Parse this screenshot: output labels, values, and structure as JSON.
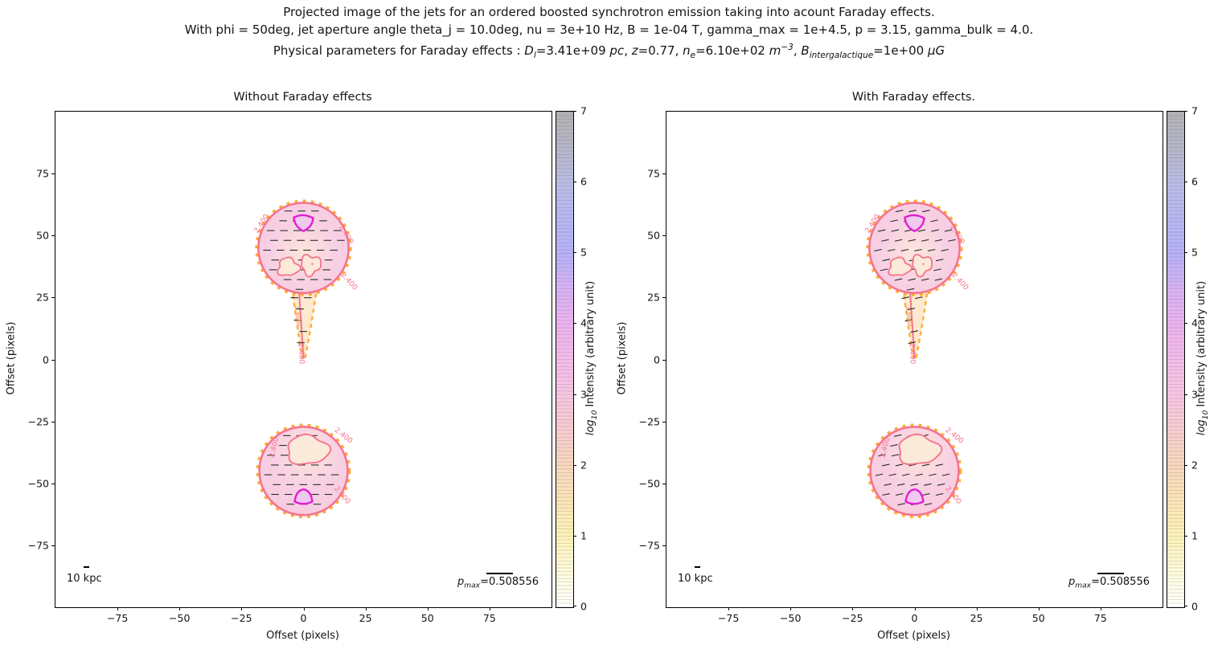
{
  "suptitle": {
    "line1": "Projected image of the jets for an ordered boosted synchrotron emission taking into acount Faraday effects.",
    "line2": "With phi = 50deg, jet aperture angle theta_j = 10.0deg, nu = 3e+10 Hz, B = 1e-04 T, gamma_max = 1e+4.5, p = 3.15, gamma_bulk = 4.0.",
    "line3_rich": [
      {
        "t": "t",
        "v": "Physical parameters for Faraday effects : "
      },
      {
        "t": "i",
        "v": "D"
      },
      {
        "t": "isub",
        "v": "l"
      },
      {
        "t": "t",
        "v": "=3.41e+09 "
      },
      {
        "t": "i",
        "v": "pc"
      },
      {
        "t": "t",
        "v": ", "
      },
      {
        "t": "i",
        "v": "z"
      },
      {
        "t": "t",
        "v": "=0.77, "
      },
      {
        "t": "i",
        "v": "n"
      },
      {
        "t": "isub",
        "v": "e"
      },
      {
        "t": "t",
        "v": "=6.10e+02 "
      },
      {
        "t": "i",
        "v": "m"
      },
      {
        "t": "isup",
        "v": "−3"
      },
      {
        "t": "t",
        "v": ", "
      },
      {
        "t": "i",
        "v": "B"
      },
      {
        "t": "isub",
        "v": "intergalactique"
      },
      {
        "t": "t",
        "v": "=1e+00 "
      },
      {
        "t": "i",
        "v": "μG"
      }
    ]
  },
  "colorbar": {
    "label_rich": [
      {
        "t": "i",
        "v": "log"
      },
      {
        "t": "isub",
        "v": "10"
      },
      {
        "t": "t",
        "v": " Intensity (arbitrary unit)"
      }
    ],
    "ticks": [
      0,
      1,
      2,
      3,
      4,
      5,
      6,
      7
    ],
    "min": 0,
    "max": 7
  },
  "colors": {
    "contour_low_orange": "#ffad2f",
    "contour_mid_pink": "#f4748e",
    "contour_tail_label": "#f58d7a",
    "contour_high_magenta": "#e01fd0",
    "lobe_fill_pink": "#f8d0e3",
    "lobe_fill_cream": "#fce6dc",
    "inner_blob_fill": "#fbe9da",
    "magenta_fill": "#f1c8ef",
    "tail_fill": "#fce9cf",
    "polarization_dash": "#2b2b2b",
    "colorbar_stops_bottom_to_top": [
      "#fffffa",
      "#fdf2b8",
      "#f8d7bd",
      "#f6c5e1",
      "#ecb2ee",
      "#b6b1f6",
      "#babce4",
      "#b2b2b2"
    ]
  },
  "chart_data": [
    {
      "type": "contour",
      "title": "Without Faraday effects",
      "xlabel": "Offset (pixels)",
      "ylabel": "Offset (pixels)",
      "xlim": [
        -100,
        100
      ],
      "ylim": [
        -100,
        100
      ],
      "xticks": [
        -75,
        -50,
        -25,
        0,
        25,
        50,
        75
      ],
      "yticks": [
        75,
        50,
        25,
        0,
        -25,
        -50,
        -75
      ],
      "grid": false,
      "polarization_angle_deg": 0,
      "lobes": {
        "top": {
          "center": [
            0,
            45
          ],
          "radius": 18.2,
          "tail_tip": [
            0,
            0.5
          ]
        },
        "bottom": {
          "center": [
            0,
            -45
          ],
          "radius": 17.8
        }
      },
      "contour_levels_labeled": [
        "1.600",
        "2.400"
      ],
      "scalebar_label": "10 kpc",
      "pmax_rich": [
        {
          "t": "i",
          "v": "p"
        },
        {
          "t": "isub",
          "v": "max"
        },
        {
          "t": "t",
          "v": "=0.508556"
        }
      ]
    },
    {
      "type": "contour",
      "title": "With Faraday effects.",
      "xlabel": "Offset (pixels)",
      "ylabel": "Offset (pixels)",
      "xlim": [
        -100,
        100
      ],
      "ylim": [
        -100,
        100
      ],
      "xticks": [
        -75,
        -50,
        -25,
        0,
        25,
        50,
        75
      ],
      "yticks": [
        75,
        50,
        25,
        0,
        -25,
        -50,
        -75
      ],
      "grid": false,
      "polarization_angle_deg": -12,
      "lobes": {
        "top": {
          "center": [
            0,
            45
          ],
          "radius": 18.2,
          "tail_tip": [
            0,
            0.5
          ]
        },
        "bottom": {
          "center": [
            0,
            -45
          ],
          "radius": 17.8
        }
      },
      "contour_levels_labeled": [
        "1.600",
        "2.400"
      ],
      "scalebar_label": "10 kpc",
      "pmax_rich": [
        {
          "t": "i",
          "v": "p"
        },
        {
          "t": "isub",
          "v": "max"
        },
        {
          "t": "t",
          "v": "=0.508556"
        }
      ]
    }
  ]
}
